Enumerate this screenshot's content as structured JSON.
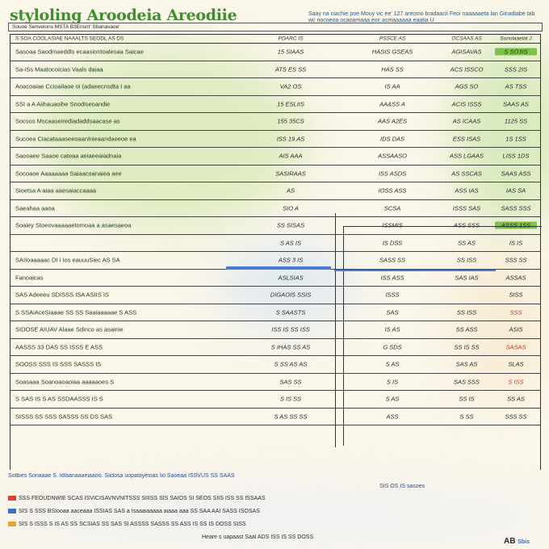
{
  "header": {
    "title": "styloling Aroodeia Areodiie",
    "note": "Saay na ciachie poe Mouy vic ee' 127 arecmo bradaacii Feoi naaaaaeta lan Ginadiabe tab wc nocoeoa ocaoamaaa eoc asmaaaaaa eaatia U"
  },
  "subtitle_bar": {
    "left": "Souoe Senvelons MSTA B3Ensnt' Sbanavaoe'",
    "right": ""
  },
  "table": {
    "headers": [
      "S SOA COOLASIAE NAAALTS SEODL AS DS",
      "PDARC IS",
      "PSSCE AS",
      "OCSAAS AS",
      "Sonoiaaelat J"
    ],
    "rows": [
      {
        "label": "Sasoaa Saodmaeddls ecaasiontoalesaa Saicae",
        "v1": "15 SIAAS",
        "v2": "HASIS GSEAS",
        "v3": "AGISAVAS",
        "v4": "S SO3IS",
        "green": true
      },
      {
        "label": "Sa-iSs Maatocoicias Vaals daiaa",
        "v1": "ATS ES SS",
        "v2": "HAS SS",
        "v3": "ACS ISSCO",
        "v4": "SSS 2IS"
      },
      {
        "label": "Aoacoaiae Ccioailaoe oi (adaeecnsdta I aa",
        "v1": "VA2 OS",
        "v2": "IS AA",
        "v3": "AGS SO",
        "v4": "AS TSS"
      },
      {
        "label": "SSI a A Aiihauaoihe Snodiseoandie",
        "v1": "15 ESLIIS",
        "v2": "AA&SS A",
        "v3": "ACIS ISSS",
        "v4": "SAAS AS"
      },
      {
        "label": "Socsos Mscaaseirediadaddsaacase as",
        "v1": "155 35CS",
        "v2": "AAS A2ES",
        "v3": "AS ICAAS",
        "v4": "1125 SS"
      },
      {
        "label": "Sucoea Ciacataaaseeoaanlnieaandaeeoe ea",
        "v1": "ISS 19.AS",
        "v2": "IDS DAS",
        "v3": "ESS ISAS",
        "v4": "1S 1SS"
      },
      {
        "label": "Saooaee Saaoe cateaa aeiaeeaiadnaia",
        "v1": "AIS AAA",
        "v2": "ASSAASO",
        "v3": "ASS LGAAS",
        "v4": "LISS 1DS"
      },
      {
        "label": "Socoaoe Aaaaaaaa Saiaacoanaiea aee",
        "v1": "SASIRAAS",
        "v2": "ISS ASDS",
        "v3": "AS SSCAS",
        "v4": "SAAS ASS"
      },
      {
        "label": "Sioetsa A aiaa aaesaiaccaaaa",
        "v1": "AS",
        "v2": "IOSS ASS",
        "v3": "ASS IAS",
        "v4": "IAS SA"
      },
      {
        "label": "Saeahaa aaoa",
        "v1": "SIO A",
        "v2": "SCSA",
        "v3": "ISSS SAS",
        "v4": "SASS SSS"
      },
      {
        "label": "Soaiey Stoeovaaaaaetomoaa a asaesaeoa",
        "v1": "SS SISAS",
        "v2": "ISSMIS",
        "v3": "ASS SSS",
        "v4": "ASSS 1SS",
        "green": true
      }
    ],
    "lower_rows": [
      {
        "label": "",
        "v1": "S AS IS",
        "v2": "IS DSS",
        "v3": "SS AS",
        "v4": "IS IS"
      },
      {
        "label": "SAIIoaaaaac DI i Ios eauuuSiec AS SA",
        "v1": "ASS 3 IS",
        "v2": "SASS SS",
        "v3": "SS ISS",
        "v4": "SSS SS"
      },
      {
        "label": "Fanoaicas",
        "v1": "ASLSIAS",
        "v2": "ISS ASS",
        "v3": "SAS IAS",
        "v4": "ASSAS"
      },
      {
        "label": "SAS Adeeeu SDISSS  ISA ASIIS IS",
        "v1": "DIGAOIS SSIS",
        "v2": "ISSS",
        "v3": "",
        "v4": "SISS"
      },
      {
        "label": "S SSAiAceSiaaae SS SS Saaiaaaaae S ASS",
        "v1": "S SAASTS",
        "v2": "SAS",
        "v3": "SS ISS",
        "v4": "SSS",
        "red": true
      },
      {
        "label": "SIDOSE AIUAV Alaae Sdinco as asainie",
        "v1": "ISS IS SS ISS",
        "v2": "IS AS",
        "v3": "SS ASS",
        "v4": "ASIS"
      },
      {
        "label": "AASSS 33 DAS SS ISSS E ASS",
        "v1": "S IHAS SS AS",
        "v2": "G SDS",
        "v3": "SS IS SS",
        "v4": "SASAS",
        "red": true
      },
      {
        "label": "SOOSS SSS IS SSS SASSS IS",
        "v1": "S SS AS AS",
        "v2": "S AS",
        "v3": "SAS AS",
        "v4": "SLAS"
      },
      {
        "label": "Soasaaa Soanoaoaoiaa aaaaaoes S",
        "v1": "SAS SS",
        "v2": "S IS",
        "v3": "SAS SSS",
        "v4": "S ISS",
        "red": true
      },
      {
        "label": "S SAS IS S AS SSDAASSS IS S",
        "v1": "S IS SS",
        "v2": "S AS",
        "v3": "SS IS",
        "v4": "SS AS"
      },
      {
        "label": "SISSS SS SSS SASSS SS DS SAS",
        "v1": "S AS SS SS",
        "v2": "ASS",
        "v3": "S SS",
        "v4": "SSS SS"
      }
    ]
  },
  "footer": {
    "head": "Sotbies Sonaaae S. Idlaanaaaeiaaoo. Siidosa uopatayeioas lio  Saoeaa ISSVUS SS SAAS",
    "sub": "SIS OS IS sasoes",
    "line1": "SSS FEOUDNWIE SCAS ISVICISAVNVNITSSS SIIISS SIS SAIOS SI SEOS SIIS ISS SS ISSAAS",
    "line2": "SIS S SSS BSIooaa aaceaaa ISSIAS SAS a Isaaaiaaaaa aiaaa aaa SS SAA AAI SASS ISOSAS",
    "line3": "SIS S ISSS S IS AS SS SCSIAS SS SAS SI ASSSS SASSS SS ASS IS SS IS DOSS SISS",
    "line4": "Heare s uapaast Saal ADS ISS IS SS DOSS",
    "brand": "AB",
    "brand_sub": "Sbis"
  }
}
